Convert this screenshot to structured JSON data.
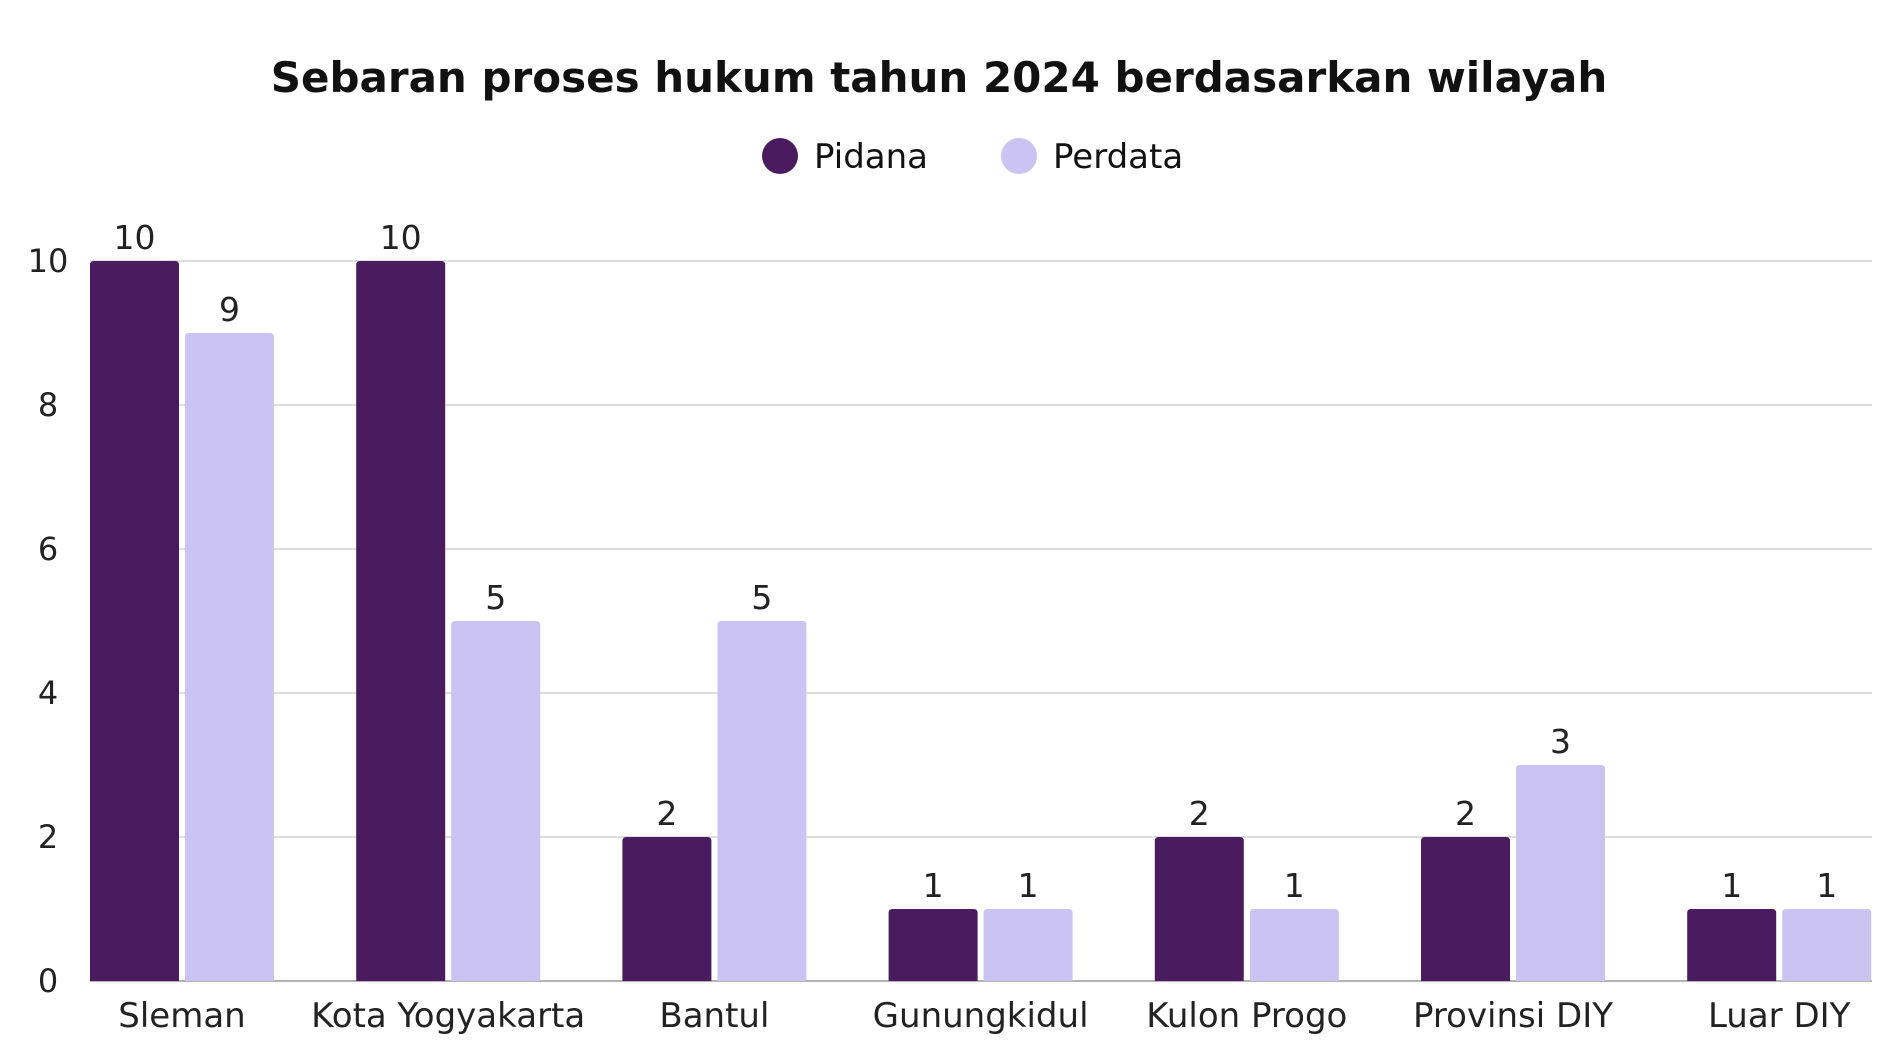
{
  "chart_data": {
    "type": "bar",
    "title": "Sebaran proses hukum tahun 2024 berdasarkan wilayah",
    "xlabel": "",
    "ylabel": "",
    "categories": [
      "Sleman",
      "Kota Yogyakarta",
      "Bantul",
      "Gunungkidul",
      "Kulon Progo",
      "Provinsi DIY",
      "Luar DIY"
    ],
    "series": [
      {
        "name": "Pidana",
        "color": "#4a1c5f",
        "values": [
          10,
          10,
          2,
          1,
          2,
          2,
          1
        ]
      },
      {
        "name": "Perdata",
        "color": "#cbc3f1",
        "values": [
          9,
          5,
          5,
          1,
          1,
          3,
          1
        ]
      }
    ],
    "ylim": [
      0,
      10
    ],
    "yticks": [
      0,
      2,
      4,
      6,
      8,
      10
    ],
    "grid": true,
    "legend": "top-center",
    "data_labels": true
  }
}
